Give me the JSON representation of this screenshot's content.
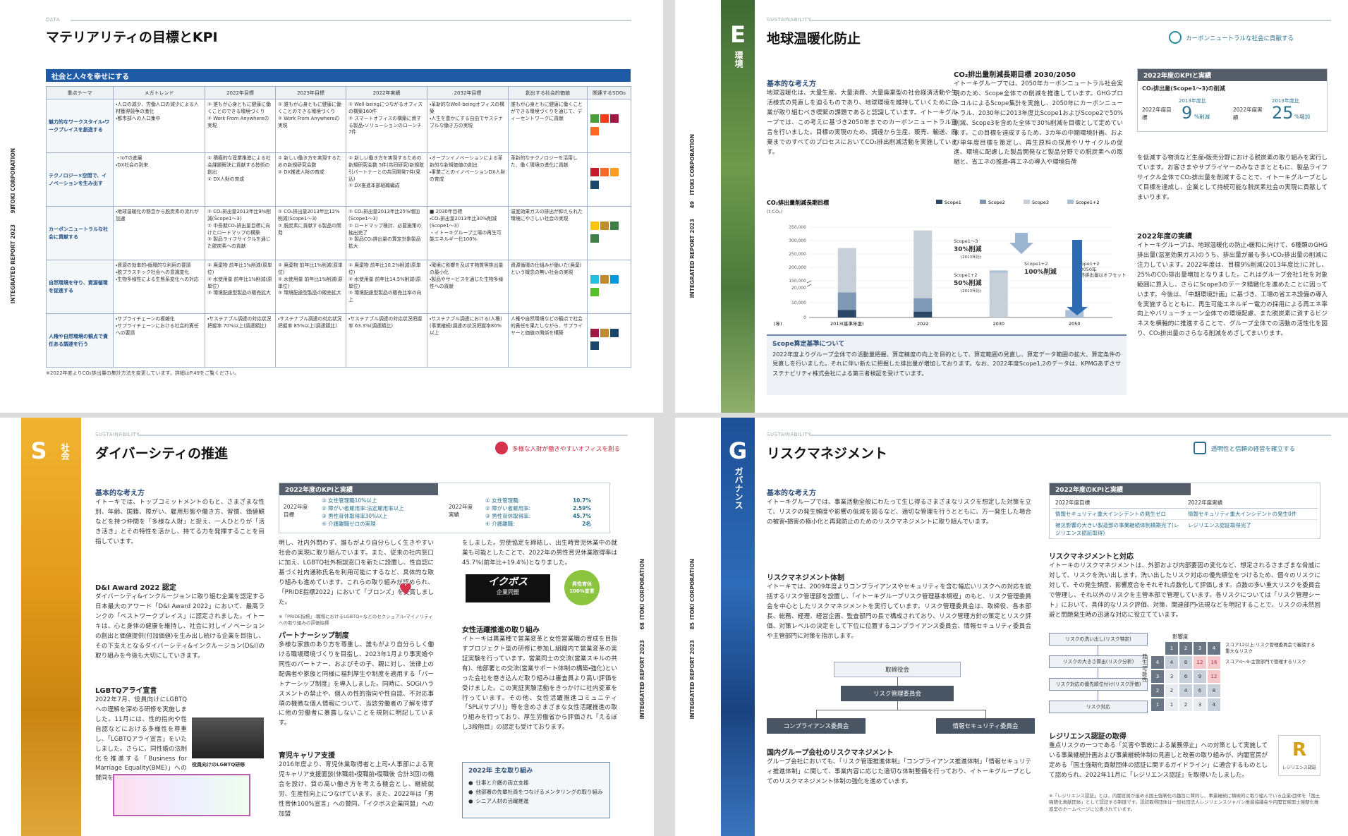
{
  "p1": {
    "label": "DATA",
    "title": "マテリアリティの目標とKPI",
    "page": "93",
    "report": "INTEGRATED REPORT 2023",
    "corp": "ITOKI CORPORATION",
    "band": "社会と人々を幸せにする",
    "table": {
      "header": [
        "重点テーマ",
        "メガトレンド",
        "2022年目標",
        "2023年目標",
        "2022年実績",
        "2032年目標",
        "創出する社会的価値",
        "関連するSDGs"
      ],
      "rows": [
        [
          "魅力的なワークスタイル・ワークプレイスを創造する",
          "・人口の減少、労働人口の減少による人材獲得競争の激化\n・都市部への人口集中",
          "① 誰もが心身ともに健康に働くことのできる環境づくり\n② Work From Anywhereの実現",
          "① 誰もが心身ともに健康に働くことのできる環境づくり\n② Work From Anywhereの実現",
          "① Well-beingにつながるオフィスの構築160件\n② スマートオフィスの構築に資する製品・ソリューションのローンチ7件",
          "・革新的なWell-beingオフィスの構築\n・人生を豊かにする自由でサステナブルな働き方の実現",
          "誰もが心身ともに健康に働くことができる環境づくりを通じて、ディーセントワークに貢献"
        ],
        [
          "テクノロジー×空間で、イノベーションを生み出す",
          "・IoTの進展\n・DX社会の到来",
          "① 積極的な産業推進による社会課題解決に貢献する技術の創出\n② DX人財の育成",
          "① 新しい働き方を実現するための新規研究会数\n② DX推進人財の育成",
          "① 新しい働き方を実現するための新規研究会数 5件(共同研究)新規取引パートナーとの共同開発7件(見込)\n② DX推進本部組織編成",
          "・オープンイノベーションによる革新的な新規価値の創出\n・事業ごとのイノベーションDX人財の育成",
          "革新的なテクノロジーを活用した、働く環境の進化に貢献"
        ],
        [
          "カーボンニュートラルな社会に貢献する",
          "・地球温暖化の懸念から脱炭素の流れが加速",
          "① CO₂排出量2013年比9%削減(Scope1〜3)\n② 中長期CO₂排出量目標に向けたロードマップの構築\n③ 製品ライフサイクルを通じた脱炭素への貢献",
          "① CO₂排出量2013年比12%削減(Scope1〜3)\n② 脱炭素に貢献する製品の開発",
          "① CO₂排出量2013年比25%増加(Scope1〜3)\n② ロードマップ検討、必要施策の抽出完了\n③ 製品CO₂排出量の算定対象製品拡大",
          "■ 2030年目標\n・CO₂排出量2013年比30%削減(Scope1〜3)\n・イトーキグループ工場の再生可能エネルギー化100%",
          "温室効果ガスの排出が抑えられた環境にやさしい社会の実現"
        ],
        [
          "自然環境を守り、資源循環を促進する",
          "・資源の効率的・循環的な利用の要請\n・脱プラスチック社会への意識変化\n・生物多様性による生態系変化への対応",
          "① 廃棄物 前年比1%削減(原単位)\n② 水使用量 前年比1%削減(原単位)\n③ 環境配慮型製品の販売拡大",
          "① 廃棄物 前年比1%削減(原単位)\n② 水使用量 前年比1%削減(原単位)\n③ 環境配慮型製品の販売拡大",
          "① 廃棄物 前年比10.2%削減(原単位)\n② 水使用量 前年比14.5%削減(原単位)\n③ 環境配慮型製品の販売比率の向上",
          "・環境に影響を及ぼす物質等排出量の最小化\n・製品やサービスを通じた生物多様性への貢献",
          "資源循環の仕組みが働いた(廃棄)という概念の無い社会の実現"
        ],
        [
          "人権や自然環境の観点で責任ある調達を行う",
          "・サプライチェーンの複雑化\n・サプライチェーンにおける社会的責任への要請",
          "・サステナブル調達の対応状況把握率 70%以上(調達額比)",
          "・サステナブル調達の対応状況把握率 85%以上(調達額比)",
          "・サステナブル調達の対応状況把握率 63.3%(調達額比)",
          "・サステナブル調達における(人権)(事業継続)調達の状況把握率80%以上",
          "人権や自然環境などの観点で社会的責任を果たしながら、サプライヤーと価値の関係を構築"
        ]
      ]
    },
    "note": "※2022年度よりCO₂排出量の集計方法を変更しています。詳細はP.49をご覧ください。"
  },
  "p2": {
    "label": "SUSTAINABILITY",
    "title": "地球温暖化防止",
    "letter": "E",
    "section": "環境",
    "page": "49",
    "report": "INTEGRATED REPORT 2023",
    "corp": "ITOKI CORPORATION",
    "badge": "カーボンニュートラルな社会に貢献する",
    "basic_heading": "基本的な考え方",
    "basic_text": "地球温暖化は、大量生産、大量消費、大量廃棄型の社会経済活動や生活様式の見直しを迫るものであり、地球環境を維持していくために企業が取り組むべき喫緊の課題であると認識しています。イトーキグループでは、この考えに基づき2050年までのカーボンニュートラル宣言を行いました。目標の実現のため、調達から生産、販売、輸送、廃棄までのすべてのプロセスにおいてCO₂排出削減活動を実施しています。",
    "long_heading": "CO₂排出量削減長期目標 2030/2050",
    "long_text": "イトーキグループでは、2050年カーボンニュートラル社会実現のため、Scope全体での削減を推進しています。GHGプロトコルによるScope集計を実施し、2050年にカーボンニュートラル、2030年に2013年度比Scope1およびScope2で50%削減、Scope3を含めた全体で30%削減を目標として定めています。この目標を達成するため、3カ年の中期環境計画、および単年度目標を策定し、再生原料の採用やリサイクルの促進、環境に配慮した製品開発など製品分野での脱炭素への取組と、省エネの推進・再エネの導入や環境負荷",
    "kpi_heading": "2022年度のKPIと実績",
    "kpi_sub": "CO₂排出量(Scope1〜3)の削減",
    "kpi_target_label": "2022年度目標",
    "kpi_base1": "2013年度比",
    "kpi_target": 9,
    "kpi_target_unit": "%削減",
    "kpi_result_label": "2022年度実績",
    "kpi_base2": "2013年度比",
    "kpi_result": 25,
    "kpi_result_unit": "%増加",
    "right_text": "を低減する物流など生産・販売分野における脱炭素の取り組みを実行しています。お客さまやサプライヤーのみなさまとともに、製品ライフサイクル全体でCO₂排出量を削減することで、イトーキグループとして目標を達成し、企業として持続可能な脱炭素社会の実現に貢献してまいります。",
    "result_heading": "2022年度の実績",
    "result_text": "イトーキグループは、地球温暖化の防止・緩和に向けて、6種類のGHG排出量(温室効果ガス)のうち、排出量が最も多いCO₂排出量の削減に注力しています。2022年度は、目標9%削減(2013年度比)に対し、25%のCO₂排出量増加となりました。これはグループ会社1社を対象範囲に算入し、さらにScope3のデータ精緻化を進めたことに因っています。今後は、「中期環境計画」に基づき、工場の省エネ設備の導入を実施するとともに、再生可能エネルギー電力の採用による再エネ率向上やバリューチェーン全体での環境配慮、また脱炭素に資するビジネスを横軸的に推進することで、グループ全体での活動の活性化を図り、CO₂排出量のさらなる削減をめざしてまいります。",
    "chart": {
      "type": "bar",
      "title": "CO₂排出量削減長期目標",
      "unit": "(t-CO₂)",
      "xlabel": "(年)",
      "categories": [
        "2013(基準年度)",
        "2022",
        "2030",
        "2050"
      ],
      "series": [
        {
          "name": "Scope1",
          "color": "#2b4868",
          "values": [
            5000,
            4000,
            null,
            null
          ]
        },
        {
          "name": "Scope2",
          "color": "#7f98b5",
          "values": [
            12000,
            9000,
            null,
            null
          ]
        },
        {
          "name": "Scope3",
          "color": "#c7cfd9",
          "values": [
            255000,
            325000,
            180000,
            null
          ]
        },
        {
          "name": "Scope1+2",
          "color": "#a9c0d8",
          "values": [
            null,
            null,
            8500,
            5000
          ]
        }
      ],
      "yticks": [
        0,
        {
          "value": 10000,
          "label": "10,000"
        },
        {
          "value": 20000,
          "label": "20,000"
        },
        {
          "value": 150000,
          "label": "150,000"
        },
        {
          "value": 200000,
          "label": "200,000"
        },
        {
          "value": 250000,
          "label": "250,000"
        },
        {
          "value": 300000,
          "label": "300,000"
        },
        {
          "value": 350000,
          "label": "350,000"
        }
      ],
      "ylim": [
        0,
        350000
      ],
      "annotations": [
        "Scope1〜3",
        "30%削減",
        "(2013年比)",
        "Scope1+2",
        "50%削減",
        "(2013年比)",
        "Scope1+2",
        "100%削減",
        "Scope1+2の2050年最終排出量はオフセット"
      ]
    },
    "scope_heading": "Scope算定基準について",
    "scope_text": "2022年度よりグループ全体での活動量把握、算定精度の向上を目的として、算定範囲の見直し、算定データ範囲の拡大、算定条件の見直しを行いました。それに伴い新たに把握した排出量が増加しております。なお、2022年度Scope1,2のデータは、KPMGあずさサステナビリティ株式会社による第三者検証を受けています。"
  },
  "p3": {
    "label": "SUSTAINABILITY",
    "title": "ダイバーシティの推進",
    "letter": "S",
    "section": "社会",
    "page": "68",
    "report": "INTEGRATED REPORT 2023",
    "corp": "ITOKI CORPORATION",
    "badge": "多様な人財が働きやすいオフィスを創る",
    "basic_heading": "基本的な考え方",
    "basic_text": "イトーキでは、トップコミットメントのもと、さまざまな性別、年齢、国籍、障がい、雇用形態や働き方、習慣、価値観などを持つ仲間を「多様な人財」と捉え、一人ひとりが「活き活き」とその特性を活かし、持てる力を発揮することを目指しています。",
    "award_heading": "D&I Award 2022 認定",
    "award_text": "ダイバーシティ&インクルージョンに取り組む企業を認定する日本最大のアワード「D&I Award 2022」において、最高ランクの「ベストワークプレイス」に認定されました。イトーキは、心と身体の健康を維持し、社会に対しイノベーションの創出と価値提供(付加価値)を生み出し続ける企業を目指し、その下支えとなるダイバーシティ&インクルージョン(D&I)の取り組みを今後も大切にしていきます。",
    "lgbtq_heading": "LGBTQアライ宣言",
    "lgbtq_text": "2022年7月、役員向けにLGBTQへの理解を深める研修を実施しました。11月には、性的指向や性自認などにおける多様性を尊重し、「LGBTQアライ宣言」をいたしました。さらに、同性婚の法制化を推進する「Business for Marriage Equality(BME)」への賛同を表",
    "photo_caption": "役員向けのLGBTQ研修",
    "kpi_heading": "2022年度のKPIと実績",
    "kpi_target_label": "2022年度目標",
    "kpi_targets": [
      "① 女性管理職10%以上",
      "② 障がい者雇用率:法定雇用率以上",
      "③ 男性育休取得率30%以上",
      "④ 介護離職ゼロの実現"
    ],
    "kpi_result_label": "2022年度実績",
    "kpi_result_items": [
      "① 女性管理職:",
      "② 障がい者雇用率:",
      "③ 男性育休取得率:",
      "④ 介護離職:"
    ],
    "kpi_results": [
      10.7,
      2.59,
      45.7,
      2
    ],
    "kpi_result_labels": [
      "10.7%",
      "2.59%",
      "45.7%",
      "2名"
    ],
    "mid_text1": "明し、社内外問わず、誰もがより自分らしく生きやすい社会の実現に取り組んでいます。また、従来の社内窓口に加え、LGBTQ社外相談窓口を新たに設置し、性自認に基づく社内通称氏名を利用可能にするなど、具体的な取り組みも進めています。これらの取り組みが認められ、「PRIDE指標2022」において「ブロンズ」を受賞しました。",
    "pride_note": "※「PRIDE指標」:職場におけるLGBTQ+などのセクシュアル・マイノリティへの取り組みの評価指標",
    "partner_heading": "パートナーシップ制度",
    "partner_text": "多様な家族のあり方を尊重し、誰もがより自分らしく働ける職場環境づくりを目指し、2023年1月より事実婚や同性のパートナー、およびその子、親に対し、法律上の配偶者や家族と同様に福利厚生や制度を適用する「パートナーシップ制度」を導入しました。同時に、SOGIハラスメントの禁止や、個人の性的指向や性自認、不対応事項の機微な個人情報について、当該労働者の了解を得ずに他の労働者に暴露しないことを規則に明記しています。",
    "career_heading": "育児キャリア支援",
    "career_text": "2016年度より、育児休業取得者と上司・人事部による育児キャリア支援面談(休職前・復職前・復職後 合計3回)の機会を設け、質の高い働き方を考える機会とし、継続就労、生産性向上につなげています。また、2022年は「男性育休100%宣言」への賛同、「イクボス企業同盟」への加盟",
    "right_text1": "をしました。労使協定を締結し、出生時育児休業中の就業も可能としたことで、2022年の男性育児休業取得率は45.7%(前年比+19.4%)となりました。",
    "ikubos": "イクボス",
    "ikubos_sub": "企業同盟",
    "ikukyu": "男性育休100%宣言",
    "women_heading": "女性活躍推進の取り組み",
    "women_text": "イトーキは異業種で営業変革と女性営業職の育成を目指すプロジェクト型の研修に参加し組織内で営業変革の実証実験を行っています。営業同士の交流(営業スキルの共有)、他部署との交流(営業サポート体制の構築・強化)といった会社を巻き込んだ取り組みは審査員より高い評価を受けました。この実証実験活動をきっかけに社内変革を行っています。その他、女性活躍推進コミュニティ「SPLi(サプリ)」等を含めさまざまな女性活躍推進の取り組みを行っており、厚生労働省から評価され「えるぼし3段階目」の認定も受けております。",
    "focus_heading": "2022年 主な取り組み",
    "focus_items": [
      "仕事と介護の両立支援",
      "他部署の先輩社員をつなげるメンタリングの取り組み",
      "シニア人材の活躍推進"
    ]
  },
  "p4": {
    "label": "SUSTAINABILITY",
    "title": "リスクマネジメント",
    "letter": "G",
    "section": "ガバナンス",
    "page": "85",
    "report": "INTEGRATED REPORT 2023",
    "corp": "ITOKI CORPORATION",
    "badge": "透明性と信頼の経営を確立する",
    "basic_heading": "基本的な考え方",
    "basic_text": "イトーキグループでは、事業活動全般にわたって生じ得るさまざまなリスクを想定した対策を立て、リスクの発生頻度や影響の低減を図るなど、適切な管理を行うとともに、万一発生した場合の被害・損害の極小化と再発防止のためのリスクマネジメントに取り組んでいます。",
    "system_heading": "リスクマネジメント体制",
    "system_text": "イトーキでは、2009年度よりコンプライアンスやセキュリティを含む幅広いリスクへの対応を統括するリスク管理部を設置し、「イトーキグループリスク管理基本規程」のもと、リスク管理委員会を中心としたリスクマネジメントを実行しています。リスク管理委員会は、取締役、各本部長、総務、経理、経営企画、監査部門の長で構成されており、リスク管理方針の策定とリスク評価、対策レベルの決定をして下位に位置するコンプライアンス委員会、情報セキュリティ委員会や主管部門に対策を指示します。",
    "org": [
      "取締役会",
      "リスク管理委員会",
      "コンプライアンス委員会",
      "情報セキュリティ委員会"
    ],
    "group_heading": "国内グループ会社のリスクマネジメント",
    "group_text": "グループ会社においても、「リスク管理推進体制」「コンプライアンス推進体制」「情報セキュリティ推進体制」に関して、事業内容に応じた適切な体制整備を行っており、イトーキグループとしてのリスクマネジメント体制の強化を進めています。",
    "kpi_heading": "2022年度のKPIと実績",
    "kpi_cols": [
      "2022年度目標",
      "2022年度実績"
    ],
    "kpi_rows": [
      [
        "情報セキュリティ重大インシデントの発生ゼロ",
        "情報セキュリティ重大インシデントの発生0件"
      ],
      [
        "被災影響の大きい製造部の事業継続体制構築完了(レジリエンス認証取得)",
        "レジリエンス認証取得完了"
      ]
    ],
    "response_heading": "リスクマネジメントと対応",
    "response_text": "イトーキのリスクマネジメントは、外部および内部要因の変化など、想定されるさまざまな脅威に対して、リスクを洗い出します。洗い出したリスク対応の優先順位をつけるため、個々のリスクに対して、その発生頻度、影響度合をそれぞれ点数化して評価します。点数の多い重大リスクを委員会で管理し、それ以外のリスクを主管本部で管理しています。各リスクについては「リスク管理シート」において、具体的なリスク評価、対策、関連部門・法規などを明記することで、リスクの未然回避と問題発生時の迅速な対応に役立てています。",
    "flow": [
      "リスクの洗い出し(リスク特定)",
      "リスクの大きさ算出(リスク分析)",
      "リスク対応の優先順位付け(リスク評価)",
      "リスク対応"
    ],
    "impact_label": "影響度",
    "likelihood_label": "発生可能性",
    "matrix_cols": [
      1,
      2,
      3,
      4
    ],
    "matrix_rows": [
      4,
      3,
      2,
      1
    ],
    "matrix": [
      [
        4,
        8,
        12,
        16
      ],
      [
        3,
        6,
        9,
        12
      ],
      [
        2,
        4,
        6,
        8
      ],
      [
        1,
        2,
        3,
        4
      ]
    ],
    "matrix_legend": [
      "スコア12以上:リスク管理委員会で審議する重大なリスク",
      "スコア4〜9:主管部門で管理するリスク"
    ],
    "resilience_heading": "レジリエンス認証の取得",
    "resilience_text": "重点リスクの一つである「災害や事故による業務停止」への対策として実施している事業継続計画および事業継続体制の見直しと改善の取り組みが、内閣官房が定める「国土強靭化貢献団体の認証に関するガイドライン」に適合するものとして認められ、2022年11月に「レジリエンス認証」を取得いたしました。",
    "resilience_mark": "レジリエンス認証",
    "resilience_note": "※「レジリエンス認証」とは、内閣官房が進める国土強靭化の趣旨に賛同し、事業継続に積極的に取り組んでいる企業・団体を「国土強靭化貢献団体」として認証する制度です。認証取得団体は一般社団法人レジリエンスジャパン推進協議会や内閣官房国土強靭化推進室のホームページに公表されています。"
  }
}
